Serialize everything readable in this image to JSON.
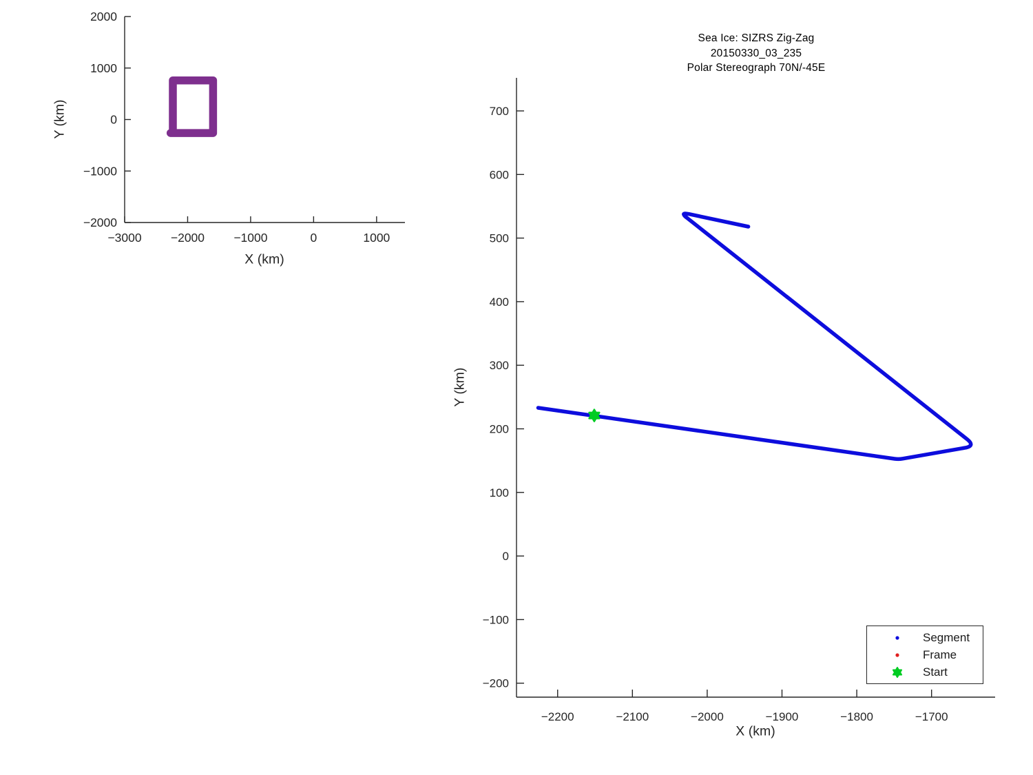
{
  "page": {
    "background": "#ffffff"
  },
  "colors": {
    "axis": "#262626",
    "tick_label": "#262626",
    "title": "#000000",
    "segment_blue": "#0d0ddd",
    "frame_red": "#e02020",
    "start_green": "#00cc22",
    "box_purple": "#7e2f8e"
  },
  "chart_data": [
    {
      "id": "overview",
      "type": "line",
      "title": "",
      "xlabel": "X (km)",
      "ylabel": "Y (km)",
      "xlim": [
        -3000,
        1450
      ],
      "ylim": [
        -2000,
        2000
      ],
      "xticks": [
        -3000,
        -2000,
        -1000,
        0,
        1000
      ],
      "xtick_labels": [
        "−3000",
        "−2000",
        "−1000",
        "0",
        "1000"
      ],
      "yticks": [
        -2000,
        -1000,
        0,
        1000,
        2000
      ],
      "ytick_labels": [
        "−2000",
        "−1000",
        "0",
        "1000",
        "2000"
      ],
      "grid": false,
      "legend": null,
      "series": [
        {
          "name": "study-area-box",
          "color": "#7e2f8e",
          "linewidth": 11.5,
          "x": [
            -2271,
            -1596,
            -1596,
            -2235,
            -2235
          ],
          "y": [
            -262,
            -262,
            760,
            760,
            -245
          ]
        }
      ],
      "markers": []
    },
    {
      "id": "track",
      "type": "line",
      "title_lines": [
        "Sea Ice: SIZRS Zig-Zag",
        "20150330_03_235",
        "Polar Stereograph 70N/-45E"
      ],
      "xlabel": "X (km)",
      "ylabel": "Y (km)",
      "xlim": [
        -2255,
        -1615
      ],
      "ylim": [
        -222,
        752
      ],
      "xticks": [
        -2200,
        -2100,
        -2000,
        -1900,
        -1800,
        -1700
      ],
      "xtick_labels": [
        "−2200",
        "−2100",
        "−2000",
        "−1900",
        "−1800",
        "−1700"
      ],
      "yticks": [
        -200,
        -100,
        0,
        100,
        200,
        300,
        400,
        500,
        600,
        700
      ],
      "ytick_labels": [
        "−200",
        "−100",
        "0",
        "100",
        "200",
        "300",
        "400",
        "500",
        "600",
        "700"
      ],
      "grid": false,
      "series": [
        {
          "name": "segment-track",
          "legend_label": "Segment",
          "color": "#0d0ddd",
          "linewidth": 5.5,
          "x": [
            -2226,
            -1744,
            -1641,
            -2037,
            -1945
          ],
          "y": [
            233,
            152,
            173,
            541,
            518
          ]
        }
      ],
      "markers": [
        {
          "name": "start-marker",
          "shape": "hexagram",
          "color": "#00cc22",
          "x": -2151,
          "y": 221,
          "size": 17
        }
      ],
      "legend": {
        "position": "bottom-right",
        "border": true,
        "items": [
          {
            "label": "Segment",
            "marker": "dot",
            "color": "#0d0ddd"
          },
          {
            "label": "Frame",
            "marker": "dot",
            "color": "#e02020"
          },
          {
            "label": "Start",
            "marker": "hexagram",
            "color": "#00cc22"
          }
        ]
      }
    }
  ]
}
